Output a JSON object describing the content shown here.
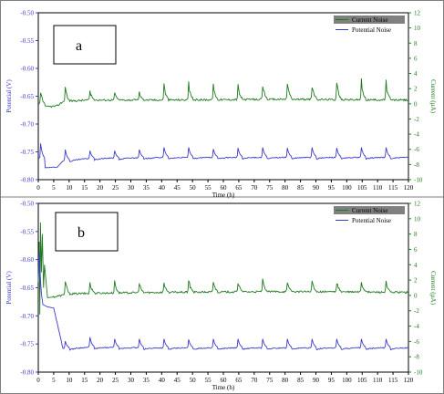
{
  "colors": {
    "potential": "#3b3bcc",
    "current": "#1f7a1f",
    "frame": "#7f7f7f",
    "legend_box": "#808080"
  },
  "chart_data": [
    {
      "type": "line",
      "panel_label": "a",
      "xlabel": "Time (h)",
      "ylabel_left": "Potential (V)",
      "ylabel_right": "Current (µA)",
      "xlim": [
        0,
        120
      ],
      "ylim_left": [
        -0.8,
        -0.5
      ],
      "ylim_right": [
        -10,
        12
      ],
      "x_ticks": [
        0,
        5,
        10,
        15,
        20,
        25,
        30,
        35,
        40,
        45,
        50,
        55,
        60,
        65,
        70,
        75,
        80,
        85,
        90,
        95,
        100,
        105,
        110,
        115,
        120
      ],
      "y_ticks_left": [
        -0.8,
        -0.75,
        -0.7,
        -0.65,
        -0.6,
        -0.55,
        -0.5
      ],
      "y_ticks_right": [
        -10,
        -8,
        -6,
        -4,
        -2,
        0,
        2,
        4,
        6,
        8,
        10,
        12
      ],
      "legend": {
        "position": "top-right",
        "entries": [
          "Current Noise",
          "Potential Noise"
        ]
      },
      "series": [
        {
          "name": "Current Noise",
          "axis": "right",
          "baseline": [
            [
              0,
              0.0
            ],
            [
              2,
              -0.4
            ],
            [
              6,
              -0.3
            ],
            [
              8,
              0.3
            ],
            [
              16,
              0.5
            ],
            [
              40,
              0.5
            ],
            [
              80,
              0.6
            ],
            [
              120,
              0.5
            ]
          ],
          "spike_times": [
            0.5,
            8.5,
            16.5,
            24.5,
            32.5,
            40.5,
            48.5,
            56.5,
            64.5,
            72.5,
            80.5,
            88.5,
            96.5,
            104.5,
            112.5
          ],
          "spike_peaks": [
            2.0,
            2.5,
            2.0,
            1.8,
            1.8,
            3.0,
            3.0,
            2.8,
            2.8,
            3.2,
            3.2,
            3.2,
            3.5,
            3.5,
            3.3
          ]
        },
        {
          "name": "Potential Noise",
          "axis": "left",
          "baseline": [
            [
              0,
              -0.76
            ],
            [
              2,
              -0.776
            ],
            [
              6,
              -0.778
            ],
            [
              8,
              -0.766
            ],
            [
              16,
              -0.762
            ],
            [
              40,
              -0.76
            ],
            [
              80,
              -0.76
            ],
            [
              120,
              -0.76
            ]
          ],
          "spike_times": [
            0.5,
            8.5,
            16.5,
            24.5,
            32.5,
            40.5,
            48.5,
            56.5,
            64.5,
            72.5,
            80.5,
            88.5,
            96.5,
            104.5,
            112.5
          ],
          "spike_peaks": [
            -0.735,
            -0.746,
            -0.748,
            -0.748,
            -0.746,
            -0.742,
            -0.742,
            -0.745,
            -0.743,
            -0.742,
            -0.743,
            -0.742,
            -0.743,
            -0.742,
            -0.742
          ]
        }
      ]
    },
    {
      "type": "line",
      "panel_label": "b",
      "xlabel": "Time (h)",
      "ylabel_left": "Potential (V)",
      "ylabel_right": "Current (µA)",
      "xlim": [
        0,
        120
      ],
      "ylim_left": [
        -0.8,
        -0.5
      ],
      "ylim_right": [
        -10,
        12
      ],
      "x_ticks": [
        0,
        5,
        10,
        15,
        20,
        25,
        30,
        35,
        40,
        45,
        50,
        55,
        60,
        65,
        70,
        75,
        80,
        85,
        90,
        95,
        100,
        105,
        110,
        115,
        120
      ],
      "y_ticks_left": [
        -0.8,
        -0.75,
        -0.7,
        -0.65,
        -0.6,
        -0.55,
        -0.5
      ],
      "y_ticks_right": [
        -10,
        -8,
        -6,
        -4,
        -2,
        0,
        2,
        4,
        6,
        8,
        10,
        12
      ],
      "legend": {
        "position": "top-right",
        "entries": [
          "Current Noise",
          "Potential Noise"
        ]
      },
      "series": [
        {
          "name": "Current Noise",
          "axis": "right",
          "initial_transient": [
            [
              0,
              2.0
            ],
            [
              0.3,
              7.0
            ],
            [
              0.5,
              -2.5
            ],
            [
              0.7,
              9.5
            ],
            [
              1.0,
              3.0
            ],
            [
              1.3,
              8.0
            ],
            [
              1.7,
              1.0
            ],
            [
              2.0,
              4.0
            ],
            [
              3.0,
              -0.3
            ],
            [
              5.0,
              -0.2
            ]
          ],
          "baseline": [
            [
              5,
              -0.2
            ],
            [
              10,
              0.2
            ],
            [
              20,
              0.3
            ],
            [
              40,
              0.4
            ],
            [
              80,
              0.5
            ],
            [
              120,
              0.4
            ]
          ],
          "spike_times": [
            8.5,
            16.5,
            24.5,
            32.5,
            40.5,
            48.5,
            56.5,
            64.5,
            72.5,
            80.5,
            88.5,
            96.5,
            104.5,
            112.5
          ],
          "spike_peaks": [
            2.5,
            2.3,
            2.0,
            1.8,
            2.0,
            2.5,
            2.2,
            2.2,
            2.2,
            2.2,
            2.3,
            2.2,
            2.2,
            2.0
          ]
        },
        {
          "name": "Potential Noise",
          "axis": "left",
          "initial_transient": [
            [
              0,
              -0.64
            ],
            [
              0.3,
              -0.585
            ],
            [
              0.6,
              -0.625
            ],
            [
              1.0,
              -0.66
            ],
            [
              1.5,
              -0.68
            ],
            [
              3,
              -0.684
            ],
            [
              5,
              -0.686
            ]
          ],
          "baseline": [
            [
              5,
              -0.686
            ],
            [
              8,
              -0.758
            ],
            [
              16,
              -0.756
            ],
            [
              40,
              -0.757
            ],
            [
              80,
              -0.757
            ],
            [
              120,
              -0.757
            ]
          ],
          "spike_times": [
            8.5,
            16.5,
            24.5,
            32.5,
            40.5,
            48.5,
            56.5,
            64.5,
            72.5,
            80.5,
            88.5,
            96.5,
            104.5,
            112.5
          ],
          "spike_peaks": [
            -0.745,
            -0.738,
            -0.741,
            -0.741,
            -0.741,
            -0.742,
            -0.741,
            -0.741,
            -0.741,
            -0.741,
            -0.741,
            -0.741,
            -0.741,
            -0.741
          ]
        }
      ]
    }
  ]
}
